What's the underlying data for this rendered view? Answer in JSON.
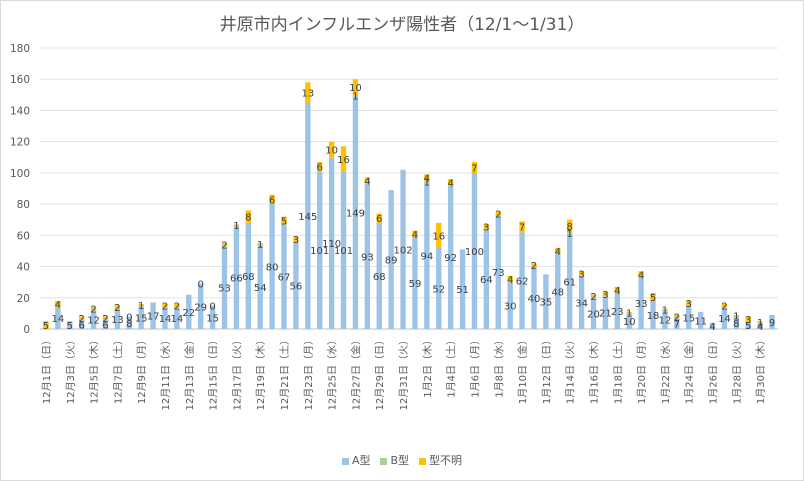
{
  "chart_data": {
    "type": "bar",
    "stacked": true,
    "title": "井原市内インフルエンザ陽性者（12/1～1/31）",
    "xlabel": "",
    "ylabel": "",
    "ylim": [
      0,
      180
    ],
    "yticks": [
      0,
      20,
      40,
      60,
      80,
      100,
      120,
      140,
      160,
      180
    ],
    "grid": true,
    "legend_position": "bottom",
    "categories": [
      "12月1日(日)",
      "12月2日(月)",
      "12月3日(火)",
      "12月4日(水)",
      "12月5日(木)",
      "12月6日(金)",
      "12月7日(土)",
      "12月8日(日)",
      "12月9日(月)",
      "12月10日(火)",
      "12月11日(水)",
      "12月12日(木)",
      "12月13日(金)",
      "12月14日(土)",
      "12月15日(日)",
      "12月16日(月)",
      "12月17日(火)",
      "12月18日(水)",
      "12月19日(木)",
      "12月20日(金)",
      "12月21日(土)",
      "12月22日(日)",
      "12月23日(月)",
      "12月24日(火)",
      "12月25日(水)",
      "12月26日(木)",
      "12月27日(金)",
      "12月28日(土)",
      "12月29日(日)",
      "12月30日(月)",
      "12月31日(火)",
      "1月1日(水)",
      "1月2日(木)",
      "1月3日(金)",
      "1月4日(土)",
      "1月5日(日)",
      "1月6日(月)",
      "1月7日(火)",
      "1月8日(水)",
      "1月9日(木)",
      "1月10日(金)",
      "1月11日(土)",
      "1月12日(日)",
      "1月13日(月)",
      "1月14日(火)",
      "1月15日(水)",
      "1月16日(木)",
      "1月17日(金)",
      "1月18日(土)",
      "1月19日(日)",
      "1月20日(月)",
      "1月21日(火)",
      "1月22日(水)",
      "1月23日(木)",
      "1月24日(金)",
      "1月25日(土)",
      "1月26日(日)",
      "1月27日(月)",
      "1月28日(火)",
      "1月29日(水)",
      "1月30日(木)",
      "1月31日(金)"
    ],
    "tick_labels": [
      "12月1日（日）",
      "12月3日（火）",
      "12月5日（木）",
      "12月7日（土）",
      "12月9日（月）",
      "12月11日（水）",
      "12月13日（金）",
      "12月15日（日）",
      "12月17日（火）",
      "12月19日（木）",
      "12月21日（土）",
      "12月23日（月）",
      "12月25日（水）",
      "12月27日（金）",
      "12月29日（日）",
      "12月31日（火）",
      "1月2日（木）",
      "1月4日（土）",
      "1月6日（月）",
      "1月8日（水）",
      "1月10日（金）",
      "1月12日（日）",
      "1月14日（火）",
      "1月16日（木）",
      "1月18日（土）",
      "1月20日（月）",
      "1月22日（水）",
      "1月24日（金）",
      "1月26日（日）",
      "1月28日（火）",
      "1月30日（木）"
    ],
    "series": [
      {
        "name": "A型",
        "color": "#9dc3e6",
        "values": [
          0,
          14,
          5,
          6,
          12,
          6,
          13,
          8,
          15,
          17,
          14,
          14,
          22,
          29,
          15,
          53,
          66,
          68,
          54,
          80,
          67,
          56,
          145,
          101,
          110,
          101,
          149,
          93,
          68,
          89,
          102,
          59,
          94,
          52,
          92,
          51,
          100,
          64,
          73,
          30,
          62,
          40,
          35,
          48,
          61,
          34,
          20,
          21,
          23,
          10,
          33,
          18,
          12,
          7,
          15,
          11,
          4,
          14,
          8,
          5,
          4,
          9
        ]
      },
      {
        "name": "B型",
        "color": "#a9d18e",
        "values": [
          0,
          0,
          0,
          0,
          0,
          0,
          0,
          0,
          0,
          0,
          0,
          0,
          0,
          0,
          0,
          0,
          0,
          0,
          0,
          0,
          0,
          0,
          0,
          0,
          0,
          0,
          1,
          0,
          0,
          0,
          0,
          0,
          1,
          0,
          0,
          0,
          0,
          0,
          0,
          0,
          0,
          0,
          0,
          0,
          1,
          0,
          0,
          0,
          0,
          0,
          0,
          0,
          0,
          0,
          0,
          0,
          0,
          0,
          0,
          0,
          0,
          0
        ]
      },
      {
        "name": "型不明",
        "color": "#ffc000",
        "values": [
          5,
          4,
          0,
          2,
          2,
          2,
          2,
          0,
          1,
          0,
          2,
          2,
          0,
          0,
          0,
          2,
          1,
          8,
          1,
          6,
          5,
          3,
          13,
          6,
          10,
          16,
          10,
          4,
          6,
          0,
          0,
          4,
          4,
          16,
          4,
          0,
          7,
          3,
          2,
          4,
          7,
          2,
          0,
          4,
          8,
          3,
          2,
          3,
          4,
          1,
          4,
          5,
          1,
          2,
          3,
          0,
          0,
          2,
          1,
          3,
          1,
          0
        ]
      }
    ],
    "value_labels": [
      {
        "A": "",
        "B": "",
        "U": "5"
      },
      {
        "A": "14",
        "B": "",
        "U": "4"
      },
      {
        "A": "5",
        "B": "",
        "U": ""
      },
      {
        "A": "6",
        "B": "",
        "U": "2"
      },
      {
        "A": "12",
        "B": "",
        "U": "2"
      },
      {
        "A": "6",
        "B": "",
        "U": "2"
      },
      {
        "A": "13",
        "B": "",
        "U": "2"
      },
      {
        "A": "8",
        "B": "",
        "U": "0"
      },
      {
        "A": "15",
        "B": "",
        "U": "1"
      },
      {
        "A": "17",
        "B": "",
        "U": ""
      },
      {
        "A": "14",
        "B": "",
        "U": "2"
      },
      {
        "A": "14",
        "B": "",
        "U": "2"
      },
      {
        "A": "22",
        "B": "",
        "U": ""
      },
      {
        "A": "29",
        "B": "",
        "U": "0"
      },
      {
        "A": "15",
        "B": "",
        "U": "0"
      },
      {
        "A": "53",
        "B": "",
        "U": "2"
      },
      {
        "A": "66",
        "B": "",
        "U": "1"
      },
      {
        "A": "68",
        "B": "",
        "U": "8"
      },
      {
        "A": "54",
        "B": "",
        "U": "1"
      },
      {
        "A": "80",
        "B": "",
        "U": "6"
      },
      {
        "A": "67",
        "B": "",
        "U": "5"
      },
      {
        "A": "56",
        "B": "",
        "U": "3"
      },
      {
        "A": "145",
        "B": "",
        "U": "13"
      },
      {
        "A": "101",
        "B": "",
        "U": "6"
      },
      {
        "A": "110",
        "B": "",
        "U": "10"
      },
      {
        "A": "101",
        "B": "",
        "U": "16"
      },
      {
        "A": "149",
        "B": "1",
        "U": "10"
      },
      {
        "A": "93",
        "B": "",
        "U": "4"
      },
      {
        "A": "68",
        "B": "",
        "U": "6"
      },
      {
        "A": "89",
        "B": "",
        "U": ""
      },
      {
        "A": "102",
        "B": "",
        "U": ""
      },
      {
        "A": "59",
        "B": "",
        "U": "4"
      },
      {
        "A": "94",
        "B": "1",
        "U": "4"
      },
      {
        "A": "52",
        "B": "",
        "U": "16"
      },
      {
        "A": "92",
        "B": "",
        "U": "4"
      },
      {
        "A": "51",
        "B": "",
        "U": ""
      },
      {
        "A": "100",
        "B": "",
        "U": "7"
      },
      {
        "A": "64",
        "B": "",
        "U": "3"
      },
      {
        "A": "73",
        "B": "",
        "U": "2"
      },
      {
        "A": "30",
        "B": "",
        "U": "4"
      },
      {
        "A": "62",
        "B": "",
        "U": "7"
      },
      {
        "A": "40",
        "B": "",
        "U": "2"
      },
      {
        "A": "35",
        "B": "",
        "U": ""
      },
      {
        "A": "48",
        "B": "",
        "U": "4"
      },
      {
        "A": "61",
        "B": "1",
        "U": "8"
      },
      {
        "A": "34",
        "B": "",
        "U": "3"
      },
      {
        "A": "20",
        "B": "",
        "U": "2"
      },
      {
        "A": "21",
        "B": "",
        "U": "3"
      },
      {
        "A": "23",
        "B": "",
        "U": "4"
      },
      {
        "A": "10",
        "B": "",
        "U": "1"
      },
      {
        "A": "33",
        "B": "",
        "U": "4"
      },
      {
        "A": "18",
        "B": "",
        "U": "5"
      },
      {
        "A": "12",
        "B": "",
        "U": "1"
      },
      {
        "A": "7",
        "B": "",
        "U": "2"
      },
      {
        "A": "15",
        "B": "",
        "U": "3"
      },
      {
        "A": "11",
        "B": "",
        "U": ""
      },
      {
        "A": "4",
        "B": "",
        "U": ""
      },
      {
        "A": "14",
        "B": "",
        "U": "2"
      },
      {
        "A": "8",
        "B": "",
        "U": "1"
      },
      {
        "A": "5",
        "B": "",
        "U": "3"
      },
      {
        "A": "4",
        "B": "",
        "U": "1"
      },
      {
        "A": "9",
        "B": "",
        "U": ""
      }
    ]
  }
}
